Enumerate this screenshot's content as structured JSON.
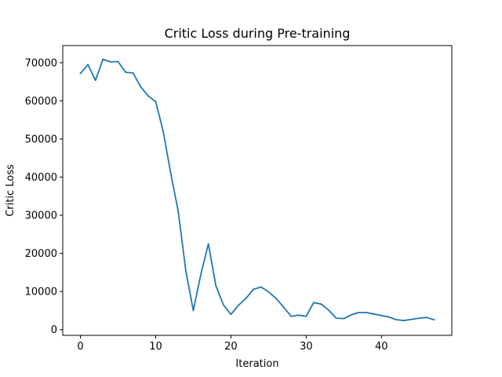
{
  "chart_data": {
    "type": "line",
    "title": "Critic Loss during Pre-training",
    "xlabel": "Iteration",
    "ylabel": "Critic Loss",
    "xlim": [
      -2.35,
      49.35
    ],
    "ylim": [
      -1500,
      74500
    ],
    "xticks": [
      0,
      10,
      20,
      30,
      40
    ],
    "xtick_labels": [
      "0",
      "10",
      "20",
      "30",
      "40"
    ],
    "yticks": [
      0,
      10000,
      20000,
      30000,
      40000,
      50000,
      60000,
      70000
    ],
    "ytick_labels": [
      "0",
      "10000",
      "20000",
      "30000",
      "40000",
      "50000",
      "60000",
      "70000"
    ],
    "grid": false,
    "legend": "none",
    "series": [
      {
        "color": "#1f77b4",
        "x": [
          0,
          1,
          2,
          3,
          4,
          5,
          6,
          7,
          8,
          9,
          10,
          11,
          12,
          13,
          14,
          15,
          16,
          17,
          18,
          19,
          20,
          21,
          22,
          23,
          24,
          25,
          26,
          27,
          28,
          29,
          30,
          31,
          32,
          33,
          34,
          35,
          36,
          37,
          38,
          39,
          40,
          41,
          42,
          43,
          44,
          45,
          46,
          47
        ],
        "values": [
          67200,
          69500,
          65400,
          70900,
          70200,
          70300,
          67500,
          67300,
          63700,
          61300,
          59800,
          52000,
          41000,
          31000,
          15500,
          5000,
          14500,
          22500,
          11500,
          6500,
          4000,
          6400,
          8200,
          10600,
          11200,
          9900,
          8200,
          5900,
          3500,
          3800,
          3500,
          7100,
          6700,
          5100,
          3000,
          2900,
          3900,
          4500,
          4500,
          4100,
          3700,
          3300,
          2600,
          2400,
          2700,
          3000,
          3200,
          2600
        ]
      }
    ]
  }
}
